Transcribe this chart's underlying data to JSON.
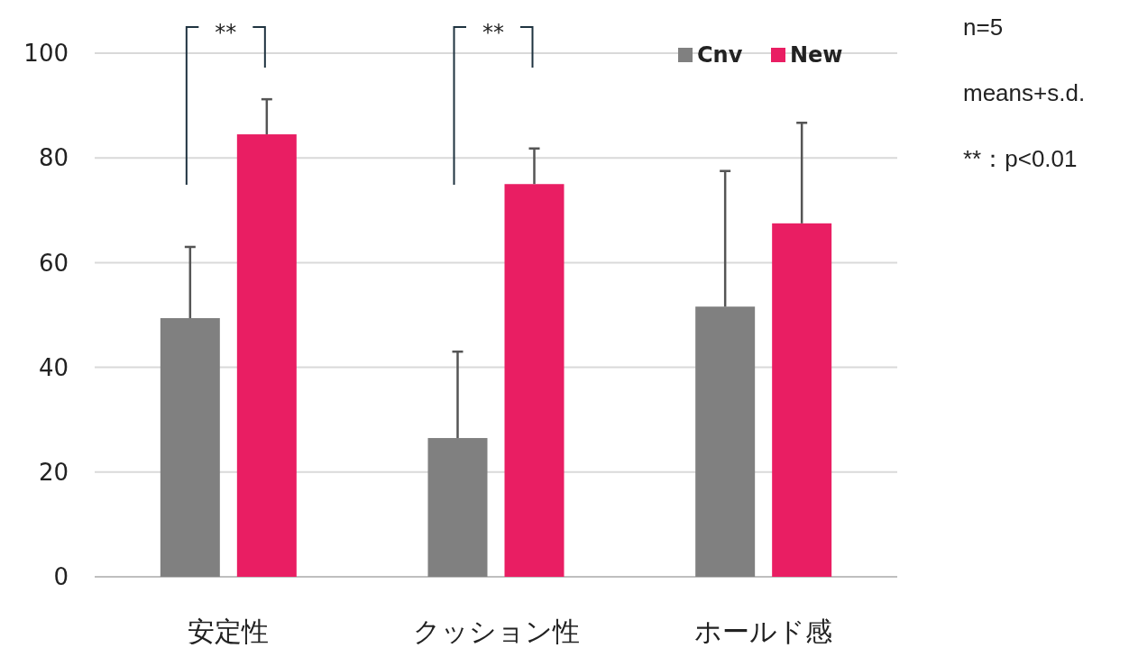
{
  "chart_data": {
    "type": "bar",
    "categories": [
      "安定性",
      "クッション性",
      "ホールド感"
    ],
    "series": [
      {
        "name": "Cnv",
        "color": "#808080",
        "values": [
          49.4,
          26.5,
          51.6
        ],
        "errors": [
          [
            49.4,
            63.0
          ],
          [
            26.5,
            43.0
          ],
          [
            51.6,
            77.5
          ]
        ]
      },
      {
        "name": "New",
        "color": "#e91e63",
        "values": [
          84.5,
          75.0,
          67.5
        ],
        "errors": [
          [
            84.5,
            91.2
          ],
          [
            75.0,
            81.8
          ],
          [
            67.5,
            86.7
          ]
        ]
      }
    ],
    "ylim": [
      0,
      100
    ],
    "yticks": [
      0,
      20,
      40,
      60,
      80,
      100
    ],
    "grid": "y",
    "legend": "top right",
    "annotations": [
      "**",
      "**",
      "n=5",
      "means+s.d.",
      "**：p<0.01"
    ]
  }
}
